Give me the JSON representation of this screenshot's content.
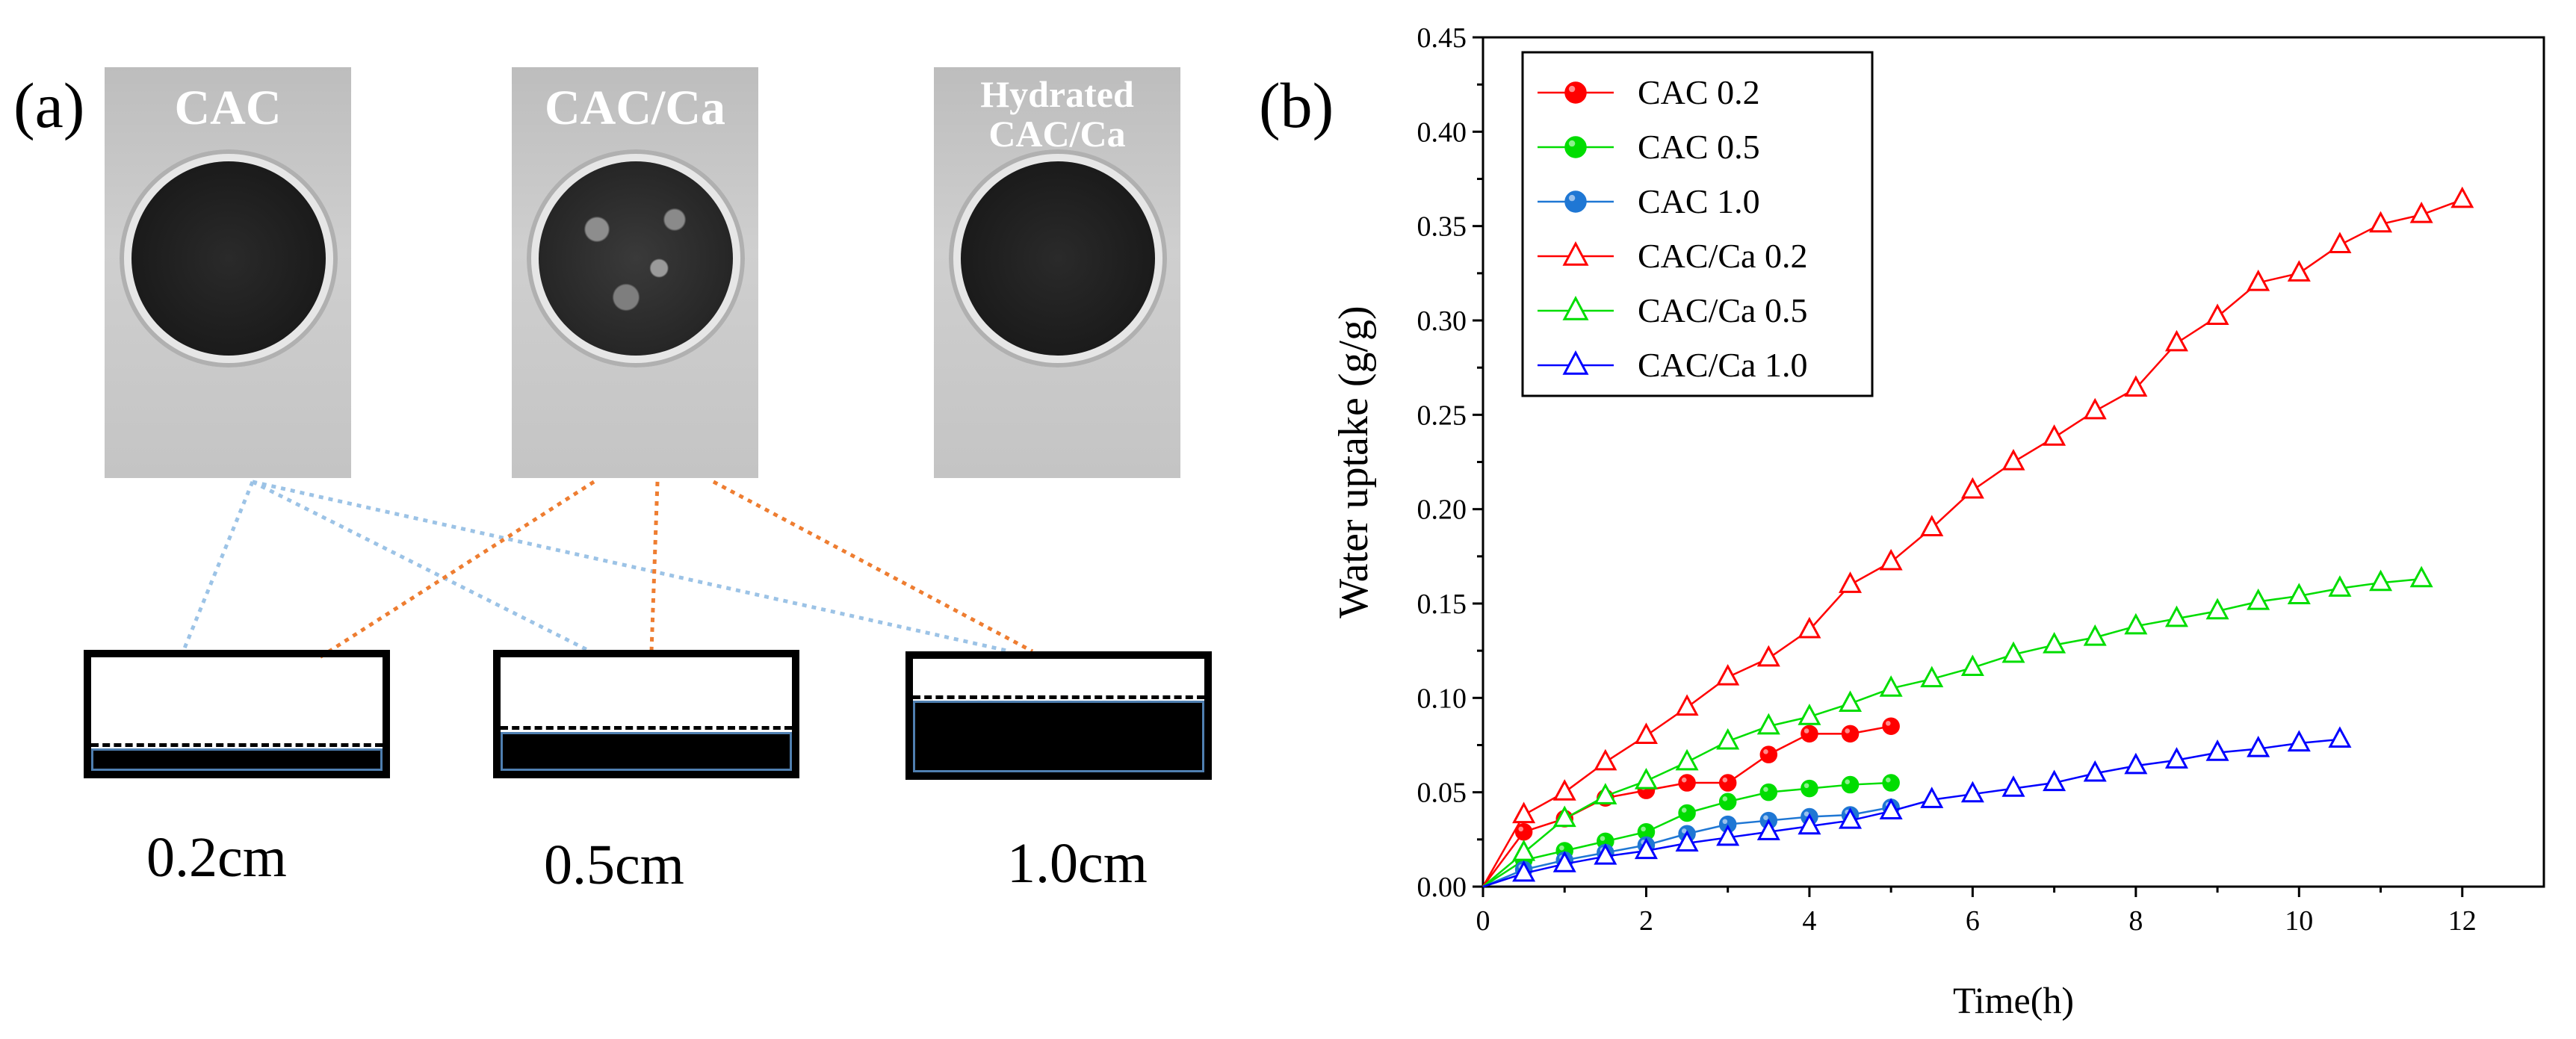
{
  "panel_a": {
    "label": "(a)",
    "photos": [
      {
        "title_lines": [
          "CAC"
        ]
      },
      {
        "title_lines": [
          "CAC/Ca"
        ]
      },
      {
        "title_lines": [
          "Hydrated",
          "CAC/Ca"
        ]
      }
    ],
    "thicknesses": [
      "0.2cm",
      "0.5cm",
      "1.0cm"
    ],
    "colors": {
      "blue_connector": "#9cc3e6",
      "orange_connector": "#ee7d31",
      "fill_border": "#4f7fb0"
    }
  },
  "panel_b": {
    "label": "(b)"
  },
  "chart_data": {
    "type": "line",
    "title": "",
    "xlabel": "Time(h)",
    "ylabel": "Water uptake (g/g)",
    "xlim": [
      0,
      13
    ],
    "ylim": [
      0,
      0.45
    ],
    "xticks": [
      0,
      2,
      4,
      6,
      8,
      10,
      12
    ],
    "xtick_labels": [
      "0",
      "2",
      "4",
      "6",
      "8",
      "10",
      "12"
    ],
    "yticks": [
      0,
      0.05,
      0.1,
      0.15,
      0.2,
      0.25,
      0.3,
      0.35,
      0.4,
      0.45
    ],
    "ytick_labels": [
      "0.00",
      "0.05",
      "0.10",
      "0.15",
      "0.20",
      "0.25",
      "0.30",
      "0.35",
      "0.40",
      "0.45"
    ],
    "grid": false,
    "legend_position": "top-left",
    "series": [
      {
        "name": "CAC 0.2",
        "color": "#ff0000",
        "marker": "filled-circle",
        "x": [
          0,
          0.5,
          1,
          1.5,
          2,
          2.5,
          3,
          3.5,
          4,
          4.5,
          5
        ],
        "y": [
          0,
          0.029,
          0.036,
          0.047,
          0.051,
          0.055,
          0.055,
          0.07,
          0.081,
          0.081,
          0.085
        ]
      },
      {
        "name": "CAC 0.5",
        "color": "#00dd00",
        "marker": "filled-circle",
        "x": [
          0,
          0.5,
          1,
          1.5,
          2,
          2.5,
          3,
          3.5,
          4,
          4.5,
          5
        ],
        "y": [
          0,
          0.014,
          0.019,
          0.024,
          0.029,
          0.039,
          0.045,
          0.05,
          0.052,
          0.054,
          0.055
        ]
      },
      {
        "name": "CAC 1.0",
        "color": "#1f77d4",
        "marker": "filled-circle",
        "x": [
          0,
          0.5,
          1,
          1.5,
          2,
          2.5,
          3,
          3.5,
          4,
          4.5,
          5
        ],
        "y": [
          0,
          0.009,
          0.014,
          0.018,
          0.022,
          0.028,
          0.033,
          0.035,
          0.037,
          0.038,
          0.042
        ]
      },
      {
        "name": "CAC/Ca 0.2",
        "color": "#ff0000",
        "marker": "open-triangle",
        "x": [
          0,
          0.5,
          1,
          1.5,
          2,
          2.5,
          3,
          3.5,
          4,
          4.5,
          5,
          5.5,
          6,
          6.5,
          7,
          7.5,
          8,
          8.5,
          9,
          9.5,
          10,
          10.5,
          11,
          11.5,
          12
        ],
        "y": [
          0,
          0.038,
          0.05,
          0.066,
          0.08,
          0.095,
          0.111,
          0.121,
          0.136,
          0.16,
          0.172,
          0.19,
          0.21,
          0.225,
          0.238,
          0.252,
          0.264,
          0.288,
          0.302,
          0.32,
          0.325,
          0.34,
          0.351,
          0.356,
          0.364
        ]
      },
      {
        "name": "CAC/Ca 0.5",
        "color": "#00dd00",
        "marker": "open-triangle",
        "x": [
          0,
          0.5,
          1,
          1.5,
          2,
          2.5,
          3,
          3.5,
          4,
          4.5,
          5,
          5.5,
          6,
          6.5,
          7,
          7.5,
          8,
          8.5,
          9,
          9.5,
          10,
          10.5,
          11,
          11.5
        ],
        "y": [
          0,
          0.018,
          0.036,
          0.048,
          0.056,
          0.066,
          0.077,
          0.085,
          0.09,
          0.097,
          0.105,
          0.11,
          0.116,
          0.123,
          0.128,
          0.132,
          0.138,
          0.142,
          0.146,
          0.151,
          0.154,
          0.158,
          0.161,
          0.163
        ]
      },
      {
        "name": "CAC/Ca 1.0",
        "color": "#0000ff",
        "marker": "open-triangle",
        "x": [
          0,
          0.5,
          1,
          1.5,
          2,
          2.5,
          3,
          3.5,
          4,
          4.5,
          5,
          5.5,
          6,
          6.5,
          7,
          7.5,
          8,
          8.5,
          9,
          9.5,
          10,
          10.5
        ],
        "y": [
          0,
          0.007,
          0.012,
          0.016,
          0.019,
          0.023,
          0.026,
          0.029,
          0.032,
          0.035,
          0.04,
          0.046,
          0.049,
          0.052,
          0.055,
          0.06,
          0.064,
          0.067,
          0.071,
          0.073,
          0.076,
          0.078
        ]
      }
    ]
  }
}
